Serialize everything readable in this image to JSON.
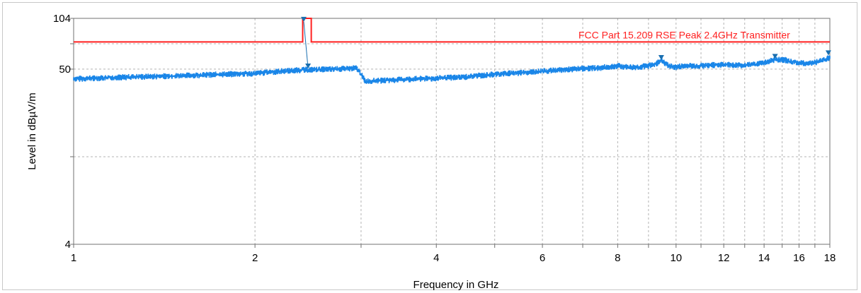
{
  "chart_data": {
    "type": "line",
    "title": "",
    "xlabel": "Frequency in GHz",
    "ylabel": "Level in dBµV/m",
    "x_scale": "log",
    "xlim": [
      1,
      18
    ],
    "ylim": [
      4,
      104
    ],
    "x_ticks": [
      "1",
      "2",
      "4",
      "6",
      "8",
      "10",
      "12",
      "14",
      "16",
      "18"
    ],
    "x_minor_gridlines": [
      3,
      5,
      7,
      9,
      11,
      13,
      15,
      17
    ],
    "y_ticks": [
      "104",
      "50",
      "4"
    ],
    "grid": true,
    "colors": {
      "limit": "#ff2020",
      "trace": "#1a86e8",
      "marker": "#1a6fb0",
      "grid": "#b4b4b4"
    },
    "series": [
      {
        "name": "FCC Part 15.209 RSE Peak 2.4GHz Transmitter",
        "kind": "limit",
        "points": [
          [
            1,
            74
          ],
          [
            2.4,
            74
          ],
          [
            2.4,
            104
          ],
          [
            2.48,
            104
          ],
          [
            2.48,
            74
          ],
          [
            18,
            74
          ]
        ]
      },
      {
        "name": "",
        "kind": "measurement",
        "points": [
          [
            1.0,
            43.5
          ],
          [
            1.2,
            44.5
          ],
          [
            1.5,
            45.5
          ],
          [
            1.8,
            46.5
          ],
          [
            2.0,
            47.0
          ],
          [
            2.2,
            48.5
          ],
          [
            2.4,
            49.5
          ],
          [
            2.6,
            49.8
          ],
          [
            2.8,
            50.2
          ],
          [
            2.95,
            50.8
          ],
          [
            3.05,
            42.0
          ],
          [
            3.3,
            42.5
          ],
          [
            3.6,
            43.3
          ],
          [
            4.0,
            43.8
          ],
          [
            4.5,
            44.8
          ],
          [
            5.0,
            46.5
          ],
          [
            5.5,
            47.5
          ],
          [
            6.0,
            48.5
          ],
          [
            6.5,
            49.5
          ],
          [
            7.0,
            50.5
          ],
          [
            7.5,
            51.0
          ],
          [
            8.0,
            52.5
          ],
          [
            8.3,
            51.5
          ],
          [
            8.6,
            51.5
          ],
          [
            9.0,
            52.5
          ],
          [
            9.3,
            54.5
          ],
          [
            9.45,
            57.0
          ],
          [
            9.6,
            54.0
          ],
          [
            9.8,
            52.0
          ],
          [
            10.0,
            51.5
          ],
          [
            10.3,
            52.5
          ],
          [
            10.8,
            52.5
          ],
          [
            11.5,
            53.0
          ],
          [
            12.0,
            53.5
          ],
          [
            12.5,
            53.0
          ],
          [
            13.0,
            53.0
          ],
          [
            13.5,
            53.5
          ],
          [
            14.0,
            55.0
          ],
          [
            14.6,
            57.5
          ],
          [
            15.2,
            57.0
          ],
          [
            15.8,
            55.0
          ],
          [
            16.2,
            54.5
          ],
          [
            16.8,
            54.5
          ],
          [
            17.3,
            56.0
          ],
          [
            18.0,
            59.0
          ]
        ]
      }
    ],
    "markers": [
      {
        "x": 2.41,
        "y": 99
      },
      {
        "x": 2.45,
        "y": 50.5
      },
      {
        "x": 9.45,
        "y": 57
      },
      {
        "x": 14.6,
        "y": 58
      },
      {
        "x": 17.9,
        "y": 61
      }
    ]
  }
}
